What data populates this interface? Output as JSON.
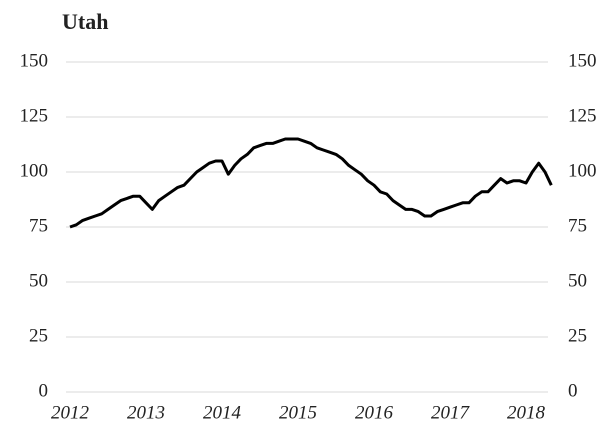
{
  "chart_data": {
    "type": "line",
    "title": "Utah",
    "categories": [
      "2012",
      null,
      null,
      null,
      null,
      null,
      null,
      null,
      null,
      null,
      null,
      null,
      "2013",
      null,
      null,
      null,
      null,
      null,
      null,
      null,
      null,
      null,
      null,
      null,
      "2014",
      null,
      null,
      null,
      null,
      null,
      null,
      null,
      null,
      null,
      null,
      null,
      "2015",
      null,
      null,
      null,
      null,
      null,
      null,
      null,
      null,
      null,
      null,
      null,
      "2016",
      null,
      null,
      null,
      null,
      null,
      null,
      null,
      null,
      null,
      null,
      null,
      "2017",
      null,
      null,
      null,
      null,
      null,
      null,
      null,
      null,
      null,
      null,
      null,
      "2018",
      null,
      null,
      null,
      null
    ],
    "series": [
      {
        "name": "Utah",
        "color": "#000000",
        "values": [
          75,
          76,
          78,
          79,
          80,
          81,
          83,
          85,
          87,
          88,
          89,
          89,
          86,
          83,
          87,
          89,
          91,
          93,
          94,
          97,
          100,
          102,
          104,
          105,
          105,
          99,
          103,
          106,
          108,
          111,
          112,
          113,
          113,
          114,
          115,
          115,
          115,
          114,
          113,
          111,
          110,
          109,
          108,
          106,
          103,
          101,
          99,
          96,
          94,
          91,
          90,
          87,
          85,
          83,
          83,
          82,
          80,
          80,
          82,
          83,
          84,
          85,
          86,
          86,
          89,
          91,
          91,
          94,
          97,
          95,
          96,
          96,
          95,
          100,
          104,
          100,
          94
        ]
      }
    ],
    "ylim": [
      0,
      150
    ],
    "yticks": [
      0,
      25,
      50,
      75,
      100,
      125,
      150
    ],
    "grid": true
  }
}
